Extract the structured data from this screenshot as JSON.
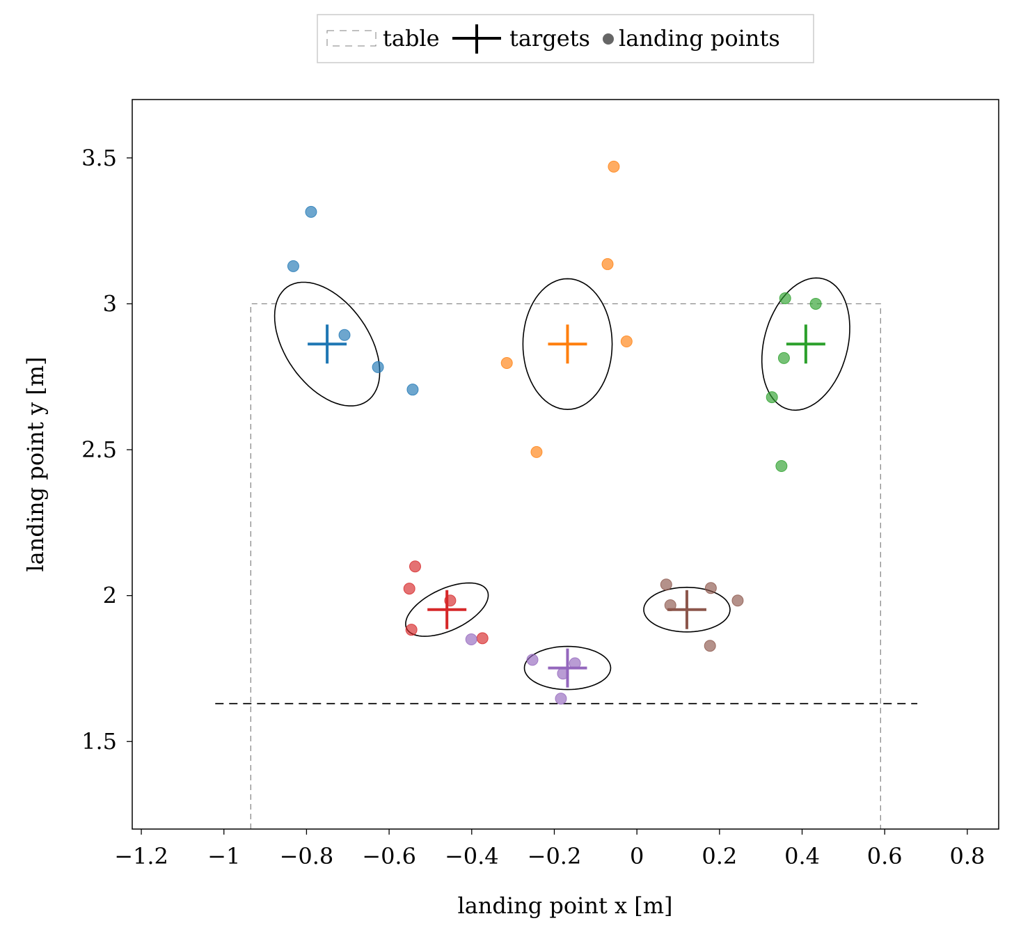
{
  "chart_data": {
    "type": "scatter",
    "xlabel": "landing point x [m]",
    "ylabel": "landing point y [m]",
    "xlim": [
      -1.222,
      0.876
    ],
    "ylim": [
      1.2,
      3.7
    ],
    "xticks": [
      -1.2,
      -1,
      -0.8,
      -0.6,
      -0.4,
      -0.2,
      0,
      0.2,
      0.4,
      0.6,
      0.8
    ],
    "xtick_labels": [
      "−1.2",
      "−1",
      "−0.8",
      "−0.6",
      "−0.4",
      "−0.2",
      "0",
      "0.2",
      "0.4",
      "0.6",
      "0.8"
    ],
    "yticks": [
      1.5,
      2,
      2.5,
      3,
      3.5
    ],
    "ytick_labels": [
      "1.5",
      "2",
      "2.5",
      "3",
      "3.5"
    ],
    "grid": false,
    "legend": {
      "placement": "top-center, outside",
      "entries": [
        {
          "label": "table",
          "marker": "dashed-rect",
          "color": "#808080"
        },
        {
          "label": "targets",
          "marker": "plus",
          "color": "#000000"
        },
        {
          "label": "landing points",
          "marker": "circle",
          "color": "#666666"
        }
      ]
    },
    "table": {
      "x": [
        -0.935,
        0.59
      ],
      "y_top": 3.0,
      "color": "#808080"
    },
    "edge_line": {
      "y": 1.63,
      "x": [
        -1.021,
        0.679
      ],
      "color": "#000000"
    },
    "groups": [
      {
        "color": "#1f77b4",
        "target": [
          -0.75,
          2.862
        ],
        "ellipse": {
          "axis1": [
            0.0967,
            -0.1955
          ],
          "axis2": [
            -0.0828,
            -0.0821
          ]
        },
        "points": [
          [
            -0.789,
            3.315
          ],
          [
            -0.832,
            3.129
          ],
          [
            -0.708,
            2.893
          ],
          [
            -0.627,
            2.783
          ],
          [
            -0.543,
            2.706
          ]
        ]
      },
      {
        "color": "#ff7f0e",
        "target": [
          -0.168,
          2.862
        ],
        "ellipse": {
          "axis1": [
            0.108,
            0
          ],
          "axis2": [
            0,
            0.224
          ]
        },
        "points": [
          [
            -0.056,
            3.47
          ],
          [
            -0.071,
            3.136
          ],
          [
            -0.025,
            2.871
          ],
          [
            -0.315,
            2.797
          ],
          [
            -0.243,
            2.492
          ]
        ]
      },
      {
        "color": "#2ca02c",
        "target": [
          0.409,
          2.862
        ],
        "ellipse": {
          "axis1": [
            0.0423,
            0.2236
          ],
          "axis2": [
            0.0977,
            -0.037
          ]
        },
        "points": [
          [
            0.359,
            3.019
          ],
          [
            0.433,
            3.0
          ],
          [
            0.356,
            2.814
          ],
          [
            0.327,
            2.68
          ],
          [
            0.35,
            2.444
          ]
        ]
      },
      {
        "color": "#d62728",
        "target": [
          -0.46,
          1.952
        ],
        "ellipse": {
          "axis1": [
            0.0977,
            0.0644
          ],
          "axis2": [
            0.0214,
            -0.0649
          ]
        },
        "points": [
          [
            -0.537,
            2.1
          ],
          [
            -0.551,
            2.024
          ],
          [
            -0.452,
            1.983
          ],
          [
            -0.546,
            1.883
          ],
          [
            -0.374,
            1.854
          ]
        ]
      },
      {
        "color": "#9467bd",
        "target": [
          -0.168,
          1.752
        ],
        "ellipse": {
          "axis1": [
            0.1045,
            0
          ],
          "axis2": [
            0,
            0.074
          ]
        },
        "points": [
          [
            -0.401,
            1.85
          ],
          [
            -0.253,
            1.78
          ],
          [
            -0.15,
            1.768
          ],
          [
            -0.179,
            1.733
          ],
          [
            -0.184,
            1.647
          ]
        ]
      },
      {
        "color": "#8c564b",
        "target": [
          0.121,
          1.952
        ],
        "ellipse": {
          "axis1": [
            0.1045,
            0
          ],
          "axis2": [
            0,
            0.0764
          ]
        },
        "points": [
          [
            0.071,
            2.038
          ],
          [
            0.179,
            2.026
          ],
          [
            0.244,
            1.983
          ],
          [
            0.081,
            1.967
          ],
          [
            0.177,
            1.828
          ]
        ]
      }
    ]
  }
}
